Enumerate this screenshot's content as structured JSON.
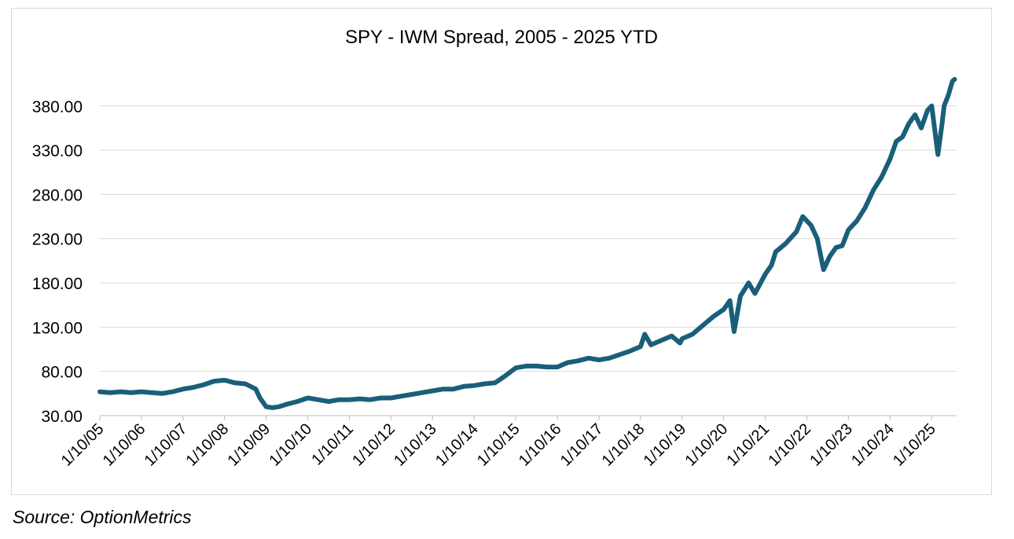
{
  "source": "Source: OptionMetrics",
  "chart_data": {
    "type": "line",
    "title": "SPY - IWM Spread, 2005 - 2025 YTD",
    "xlabel": "",
    "ylabel": "",
    "ylim": [
      30,
      410
    ],
    "yticks": [
      "30.00",
      "80.00",
      "130.00",
      "180.00",
      "230.00",
      "280.00",
      "330.00",
      "380.00"
    ],
    "ytick_values": [
      30,
      80,
      130,
      180,
      230,
      280,
      330,
      380
    ],
    "xticks": [
      "1/10/05",
      "1/10/06",
      "1/10/07",
      "1/10/08",
      "1/10/09",
      "1/10/10",
      "1/10/11",
      "1/10/12",
      "1/10/13",
      "1/10/14",
      "1/10/15",
      "1/10/16",
      "1/10/17",
      "1/10/18",
      "1/10/19",
      "1/10/20",
      "1/10/21",
      "1/10/22",
      "1/10/23",
      "1/10/24",
      "1/10/25"
    ],
    "xtick_values": [
      2005,
      2006,
      2007,
      2008,
      2009,
      2010,
      2011,
      2012,
      2013,
      2014,
      2015,
      2016,
      2017,
      2018,
      2019,
      2020,
      2021,
      2022,
      2023,
      2024,
      2025
    ],
    "xlim": [
      2005,
      2025.6
    ],
    "grid": true,
    "line_color": "#1a5f7a",
    "series": [
      {
        "x": [
          2005.0,
          2005.25,
          2005.5,
          2005.75,
          2006.0,
          2006.25,
          2006.5,
          2006.75,
          2007.0,
          2007.25,
          2007.5,
          2007.75,
          2008.0,
          2008.25,
          2008.5,
          2008.75,
          2008.85,
          2009.0,
          2009.15,
          2009.3,
          2009.5,
          2009.75,
          2010.0,
          2010.25,
          2010.5,
          2010.75,
          2011.0,
          2011.25,
          2011.5,
          2011.75,
          2012.0,
          2012.25,
          2012.5,
          2012.75,
          2013.0,
          2013.25,
          2013.5,
          2013.75,
          2014.0,
          2014.25,
          2014.5,
          2014.75,
          2015.0,
          2015.25,
          2015.5,
          2015.75,
          2016.0,
          2016.25,
          2016.5,
          2016.75,
          2017.0,
          2017.25,
          2017.5,
          2017.75,
          2018.0,
          2018.1,
          2018.25,
          2018.5,
          2018.75,
          2018.95,
          2019.0,
          2019.25,
          2019.5,
          2019.75,
          2020.0,
          2020.15,
          2020.25,
          2020.4,
          2020.6,
          2020.75,
          2021.0,
          2021.15,
          2021.25,
          2021.5,
          2021.75,
          2021.9,
          2022.0,
          2022.1,
          2022.25,
          2022.4,
          2022.55,
          2022.7,
          2022.85,
          2023.0,
          2023.2,
          2023.4,
          2023.6,
          2023.8,
          2024.0,
          2024.15,
          2024.3,
          2024.45,
          2024.6,
          2024.75,
          2024.9,
          2025.0,
          2025.15,
          2025.25,
          2025.3,
          2025.4,
          2025.5,
          2025.55
        ],
        "y": [
          57,
          56,
          57,
          56,
          57,
          56,
          55,
          57,
          60,
          62,
          65,
          69,
          70,
          67,
          66,
          60,
          50,
          40,
          39,
          40,
          43,
          46,
          50,
          48,
          46,
          48,
          48,
          49,
          48,
          50,
          50,
          52,
          54,
          56,
          58,
          60,
          60,
          63,
          64,
          66,
          67,
          75,
          84,
          86,
          86,
          85,
          85,
          90,
          92,
          95,
          93,
          95,
          99,
          103,
          108,
          122,
          110,
          115,
          120,
          112,
          117,
          122,
          132,
          142,
          150,
          160,
          125,
          165,
          180,
          168,
          190,
          200,
          215,
          225,
          238,
          255,
          250,
          245,
          230,
          195,
          210,
          220,
          222,
          240,
          250,
          265,
          285,
          300,
          320,
          340,
          345,
          360,
          370,
          355,
          375,
          380,
          325,
          360,
          380,
          392,
          408,
          410
        ]
      }
    ]
  }
}
